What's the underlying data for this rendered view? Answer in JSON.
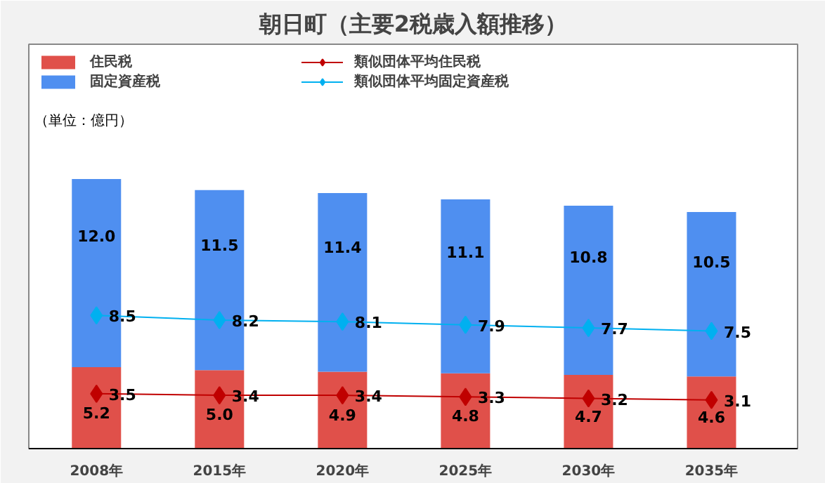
{
  "chart_data": {
    "type": "bar",
    "title": "朝日町（主要2税歳入額推移）",
    "annotations": [
      "（単位：億円）"
    ],
    "categories": [
      "2008年",
      "2015年",
      "2020年",
      "2025年",
      "2030年",
      "2035年"
    ],
    "stacked": true,
    "legend": "top",
    "grid": false,
    "tick_labels": "x",
    "series": [
      {
        "name": "住民税",
        "color": "#e0504a",
        "values": [
          5.2,
          5.0,
          4.9,
          4.8,
          4.7,
          4.6
        ],
        "value_labels": [
          "5.2",
          "5.0",
          "4.9",
          "4.8",
          "4.7",
          "4.6"
        ]
      },
      {
        "name": "固定資産税",
        "color": "#4f8ff0",
        "values": [
          12.0,
          11.5,
          11.4,
          11.1,
          10.8,
          10.5
        ],
        "value_labels": [
          "12.0",
          "11.5",
          "11.4",
          "11.1",
          "10.8",
          "10.5"
        ]
      },
      {
        "name": "類似団体平均住民税",
        "type": "line",
        "color": "#c00000",
        "marker": "diamond",
        "values": [
          3.5,
          3.4,
          3.4,
          3.3,
          3.2,
          3.1
        ],
        "value_labels": [
          "3.5",
          "3.4",
          "3.4",
          "3.3",
          "3.2",
          "3.1"
        ]
      },
      {
        "name": "類似団体平均固定資産税",
        "type": "line",
        "color": "#00b0f0",
        "marker": "diamond",
        "values": [
          8.5,
          8.2,
          8.1,
          7.9,
          7.7,
          7.5
        ],
        "value_labels": [
          "8.5",
          "8.2",
          "8.1",
          "7.9",
          "7.7",
          "7.5"
        ]
      }
    ]
  }
}
